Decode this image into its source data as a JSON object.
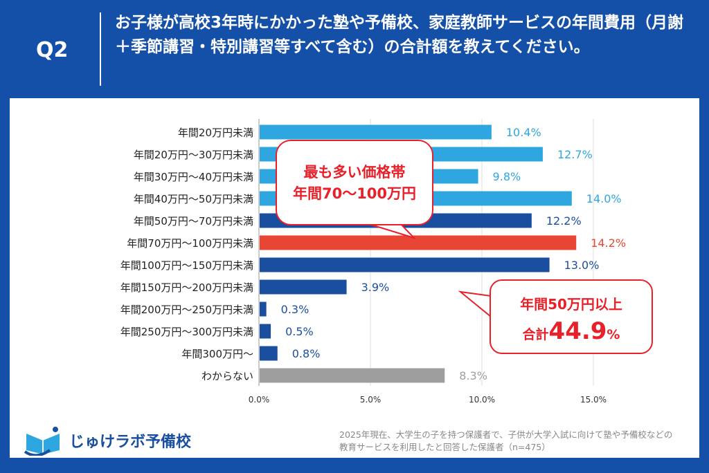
{
  "header": {
    "q": "Q2",
    "text": "お子様が高校3年時にかかった塾や予備校、家庭教師サービスの年間費用（月謝＋季節講習・特別講習等すべて含む）の合計額を教えてください。"
  },
  "colors": {
    "background": "#1450a8",
    "light_blue": "#2ea7e0",
    "dark_blue": "#1a4fa0",
    "red": "#e84535",
    "gray": "#9e9e9e"
  },
  "chart_data": {
    "type": "bar",
    "orientation": "horizontal",
    "categories": [
      "年間20万円未満",
      "年間20万円～30万円未満",
      "年間30万円～40万円未満",
      "年間40万円～50万円未満",
      "年間50万円～70万円未満",
      "年間70万円～100万円未満",
      "年間100万円～150万円未満",
      "年間150万円～200万円未満",
      "年間200万円～250万円未満",
      "年間250万円～300万円未満",
      "年間300万円～",
      "わからない"
    ],
    "values": [
      10.4,
      12.7,
      9.8,
      14.0,
      12.2,
      14.2,
      13.0,
      3.9,
      0.3,
      0.5,
      0.8,
      8.3
    ],
    "labels": [
      "10.4%",
      "12.7%",
      "9.8%",
      "14.0%",
      "12.2%",
      "14.2%",
      "13.0%",
      "3.9%",
      "0.3%",
      "0.5%",
      "0.8%",
      "8.3%"
    ],
    "bar_colors": [
      "#2ea7e0",
      "#2ea7e0",
      "#2ea7e0",
      "#2ea7e0",
      "#1a4fa0",
      "#e84535",
      "#1a4fa0",
      "#1a4fa0",
      "#1a4fa0",
      "#1a4fa0",
      "#1a4fa0",
      "#9e9e9e"
    ],
    "xlim": [
      0,
      15
    ],
    "xticks": [
      "0.0%",
      "5.0%",
      "10.0%",
      "15.0%"
    ],
    "xtick_values": [
      0,
      5,
      10,
      15
    ],
    "grid": true
  },
  "callouts": {
    "most_line1": "最も多い価格帯",
    "most_line2": "年間70～100万円",
    "over50_line1": "年間50万円以上",
    "over50_prefix": "合計",
    "over50_value": "44.9",
    "over50_unit": "%"
  },
  "footer": {
    "logo": "じゅけラボ予備校",
    "note_line1": "2025年現在、大学生の子を持つ保護者で、子供が大学入試に向けて塾や予備校などの",
    "note_line2": "教育サービスを利用したと回答した保護者（n=475）"
  }
}
